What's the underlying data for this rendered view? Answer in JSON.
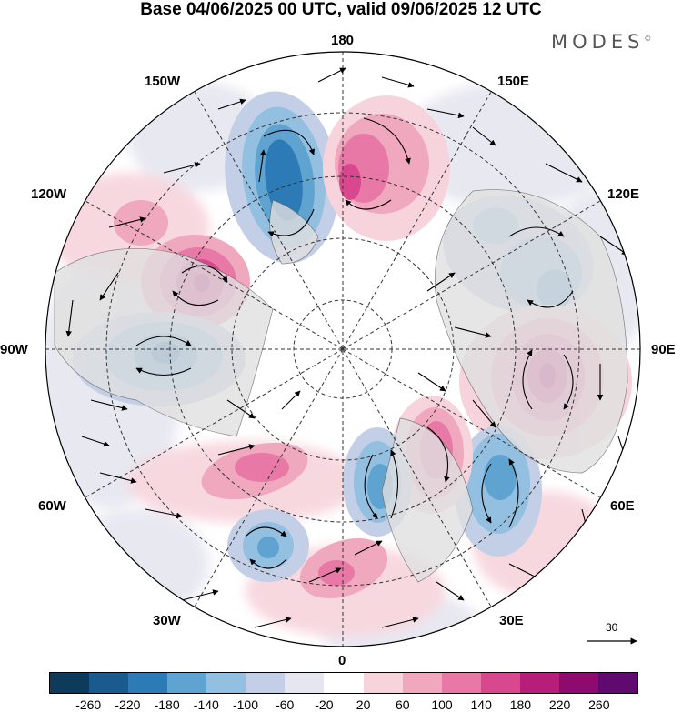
{
  "title": "Base 04/06/2025 00 UTC, valid 09/06/2025 12 UTC",
  "brand": "MODES",
  "brand_mark": "©",
  "longitude_labels": {
    "lon_180": "180",
    "lon_150e": "150E",
    "lon_120e": "120E",
    "lon_90e": "90E",
    "lon_60e": "60E",
    "lon_30e": "30E",
    "lon_0": "0",
    "lon_30w": "30W",
    "lon_60w": "60W",
    "lon_90w": "90W",
    "lon_120w": "120W",
    "lon_150w": "150W"
  },
  "vector_scale": {
    "label": "30"
  },
  "colorbar": {
    "colors": [
      "#0e3a5c",
      "#1a5a8c",
      "#2c7bb6",
      "#5fa3d0",
      "#93bfe0",
      "#c3cfe6",
      "#e6e6f0",
      "#ffffff",
      "#f7d4dc",
      "#f0a8bf",
      "#e879a6",
      "#d9488e",
      "#b81d7a",
      "#8e0a6e",
      "#5e0a6e"
    ],
    "ticks": [
      "-260",
      "-220",
      "-180",
      "-140",
      "-100",
      "-60",
      "-20",
      "20",
      "60",
      "100",
      "140",
      "180",
      "220",
      "260"
    ]
  }
}
